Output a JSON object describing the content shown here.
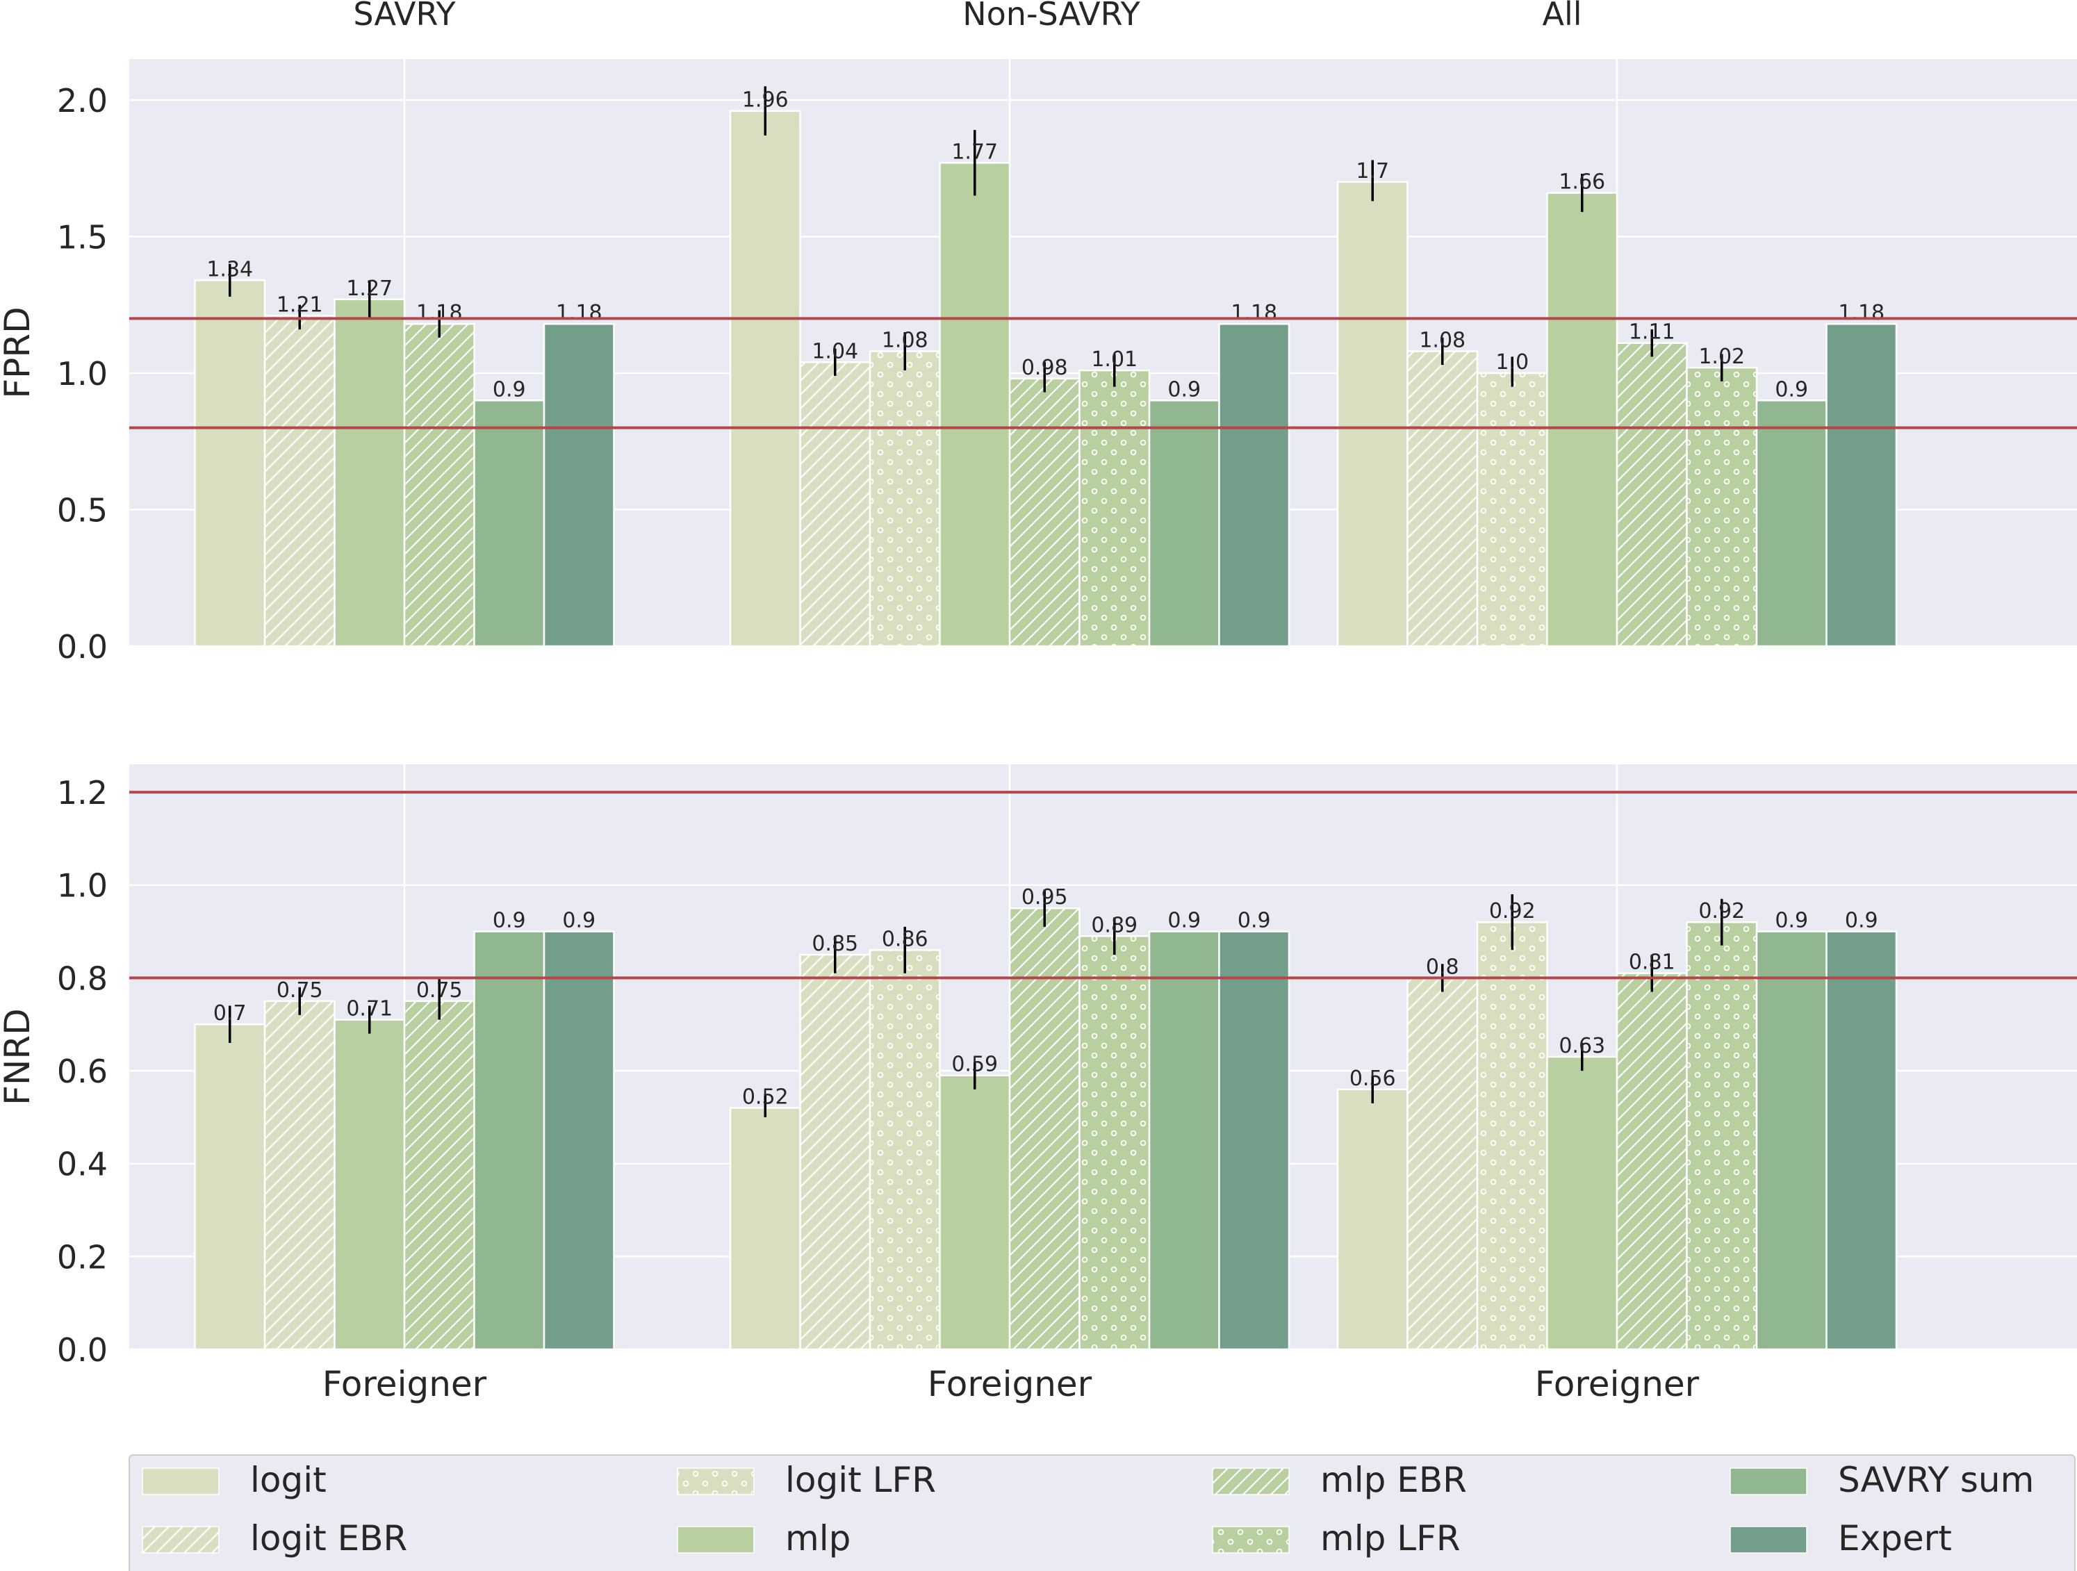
{
  "figure": {
    "background": "#ffffff",
    "panel_background": "#eaeaf2",
    "grid_color": "#ffffff",
    "threshold_color": "#b5474b",
    "error_bar_color": "#000000",
    "panel_titles": [
      "SAVRY",
      "Non-SAVRY",
      "All"
    ],
    "legend_location": "bottom, 4 columns"
  },
  "legend": [
    {
      "label": "logit",
      "color": "#d8dfc1",
      "hatch": "none"
    },
    {
      "label": "logit EBR",
      "color": "#d8dfc1",
      "hatch": "diagonal"
    },
    {
      "label": "logit LFR",
      "color": "#d8dfc1",
      "hatch": "dots"
    },
    {
      "label": "mlp",
      "color": "#b8cf9f",
      "hatch": "none"
    },
    {
      "label": "mlp EBR",
      "color": "#b8cf9f",
      "hatch": "diagonal"
    },
    {
      "label": "mlp LFR",
      "color": "#b8cf9f",
      "hatch": "dots"
    },
    {
      "label": "SAVRY sum",
      "color": "#91b791",
      "hatch": "none"
    },
    {
      "label": "Expert",
      "color": "#739f8a",
      "hatch": "none"
    }
  ],
  "chart_data": [
    {
      "type": "bar",
      "title": "",
      "ylabel": "FPRD",
      "xlabel": "",
      "ylim": [
        0,
        2.15
      ],
      "yticks": [
        "0.0",
        "0.5",
        "1.0",
        "1.5",
        "2.0"
      ],
      "ytick_values": [
        0,
        0.5,
        1.0,
        1.5,
        2.0
      ],
      "reference_lines": [
        0.8,
        1.2
      ],
      "grid": true,
      "groups": [
        {
          "panel": "SAVRY",
          "category": "Foreigner",
          "bars": [
            {
              "series": "logit",
              "value": 1.34,
              "label": "1.34",
              "err": [
                1.28,
                1.4
              ]
            },
            {
              "series": "logit EBR",
              "value": 1.21,
              "label": "1.21",
              "err": [
                1.16,
                1.25
              ]
            },
            {
              "series": "mlp",
              "value": 1.27,
              "label": "1.27",
              "err": [
                1.2,
                1.34
              ]
            },
            {
              "series": "mlp EBR",
              "value": 1.18,
              "label": "1.18",
              "err": [
                1.13,
                1.23
              ]
            },
            {
              "series": "SAVRY sum",
              "value": 0.9,
              "label": "0.9",
              "err": null
            },
            {
              "series": "Expert",
              "value": 1.18,
              "label": "1.18",
              "err": null
            }
          ]
        },
        {
          "panel": "Non-SAVRY",
          "category": "Foreigner",
          "bars": [
            {
              "series": "logit",
              "value": 1.96,
              "label": "1.96",
              "err": [
                1.87,
                2.05
              ]
            },
            {
              "series": "logit EBR",
              "value": 1.04,
              "label": "1.04",
              "err": [
                0.99,
                1.09
              ]
            },
            {
              "series": "logit LFR",
              "value": 1.08,
              "label": "1.08",
              "err": [
                1.01,
                1.15
              ]
            },
            {
              "series": "mlp",
              "value": 1.77,
              "label": "1.77",
              "err": [
                1.65,
                1.89
              ]
            },
            {
              "series": "mlp EBR",
              "value": 0.98,
              "label": "0.98",
              "err": [
                0.93,
                1.04
              ]
            },
            {
              "series": "mlp LFR",
              "value": 1.01,
              "label": "1.01",
              "err": [
                0.95,
                1.07
              ]
            },
            {
              "series": "SAVRY sum",
              "value": 0.9,
              "label": "0.9",
              "err": null
            },
            {
              "series": "Expert",
              "value": 1.18,
              "label": "1.18",
              "err": null
            }
          ]
        },
        {
          "panel": "All",
          "category": "Foreigner",
          "bars": [
            {
              "series": "logit",
              "value": 1.7,
              "label": "1.7",
              "err": [
                1.63,
                1.78
              ]
            },
            {
              "series": "logit EBR",
              "value": 1.08,
              "label": "1.08",
              "err": [
                1.03,
                1.13
              ]
            },
            {
              "series": "logit LFR",
              "value": 1.0,
              "label": "1.0",
              "err": [
                0.95,
                1.06
              ]
            },
            {
              "series": "mlp",
              "value": 1.66,
              "label": "1.66",
              "err": [
                1.59,
                1.73
              ]
            },
            {
              "series": "mlp EBR",
              "value": 1.11,
              "label": "1.11",
              "err": [
                1.06,
                1.16
              ]
            },
            {
              "series": "mlp LFR",
              "value": 1.02,
              "label": "1.02",
              "err": [
                0.97,
                1.07
              ]
            },
            {
              "series": "SAVRY sum",
              "value": 0.9,
              "label": "0.9",
              "err": null
            },
            {
              "series": "Expert",
              "value": 1.18,
              "label": "1.18",
              "err": null
            }
          ]
        }
      ]
    },
    {
      "type": "bar",
      "title": "",
      "ylabel": "FNRD",
      "xlabel": "",
      "ylim": [
        0,
        1.26
      ],
      "yticks": [
        "0.0",
        "0.2",
        "0.4",
        "0.6",
        "0.8",
        "1.0",
        "1.2"
      ],
      "ytick_values": [
        0,
        0.2,
        0.4,
        0.6,
        0.8,
        1.0,
        1.2
      ],
      "reference_lines": [
        0.8,
        1.2
      ],
      "grid": true,
      "groups": [
        {
          "panel": "SAVRY",
          "category": "Foreigner",
          "bars": [
            {
              "series": "logit",
              "value": 0.7,
              "label": "0.7",
              "err": [
                0.66,
                0.74
              ]
            },
            {
              "series": "logit EBR",
              "value": 0.75,
              "label": "0.75",
              "err": [
                0.72,
                0.78
              ]
            },
            {
              "series": "mlp",
              "value": 0.71,
              "label": "0.71",
              "err": [
                0.68,
                0.74
              ]
            },
            {
              "series": "mlp EBR",
              "value": 0.75,
              "label": "0.75",
              "err": [
                0.71,
                0.8
              ]
            },
            {
              "series": "SAVRY sum",
              "value": 0.9,
              "label": "0.9",
              "err": null
            },
            {
              "series": "Expert",
              "value": 0.9,
              "label": "0.9",
              "err": null
            }
          ]
        },
        {
          "panel": "Non-SAVRY",
          "category": "Foreigner",
          "bars": [
            {
              "series": "logit",
              "value": 0.52,
              "label": "0.52",
              "err": [
                0.5,
                0.55
              ]
            },
            {
              "series": "logit EBR",
              "value": 0.85,
              "label": "0.85",
              "err": [
                0.81,
                0.89
              ]
            },
            {
              "series": "logit LFR",
              "value": 0.86,
              "label": "0.86",
              "err": [
                0.81,
                0.91
              ]
            },
            {
              "series": "mlp",
              "value": 0.59,
              "label": "0.59",
              "err": [
                0.56,
                0.62
              ]
            },
            {
              "series": "mlp EBR",
              "value": 0.95,
              "label": "0.95",
              "err": [
                0.91,
                0.99
              ]
            },
            {
              "series": "mlp LFR",
              "value": 0.89,
              "label": "0.89",
              "err": [
                0.85,
                0.93
              ]
            },
            {
              "series": "SAVRY sum",
              "value": 0.9,
              "label": "0.9",
              "err": null
            },
            {
              "series": "Expert",
              "value": 0.9,
              "label": "0.9",
              "err": null
            }
          ]
        },
        {
          "panel": "All",
          "category": "Foreigner",
          "bars": [
            {
              "series": "logit",
              "value": 0.56,
              "label": "0.56",
              "err": [
                0.53,
                0.59
              ]
            },
            {
              "series": "logit EBR",
              "value": 0.8,
              "label": "0.8",
              "err": [
                0.77,
                0.83
              ]
            },
            {
              "series": "logit LFR",
              "value": 0.92,
              "label": "0.92",
              "err": [
                0.86,
                0.98
              ]
            },
            {
              "series": "mlp",
              "value": 0.63,
              "label": "0.63",
              "err": [
                0.6,
                0.66
              ]
            },
            {
              "series": "mlp EBR",
              "value": 0.81,
              "label": "0.81",
              "err": [
                0.77,
                0.85
              ]
            },
            {
              "series": "mlp LFR",
              "value": 0.92,
              "label": "0.92",
              "err": [
                0.87,
                0.97
              ]
            },
            {
              "series": "SAVRY sum",
              "value": 0.9,
              "label": "0.9",
              "err": null
            },
            {
              "series": "Expert",
              "value": 0.9,
              "label": "0.9",
              "err": null
            }
          ]
        }
      ]
    }
  ]
}
